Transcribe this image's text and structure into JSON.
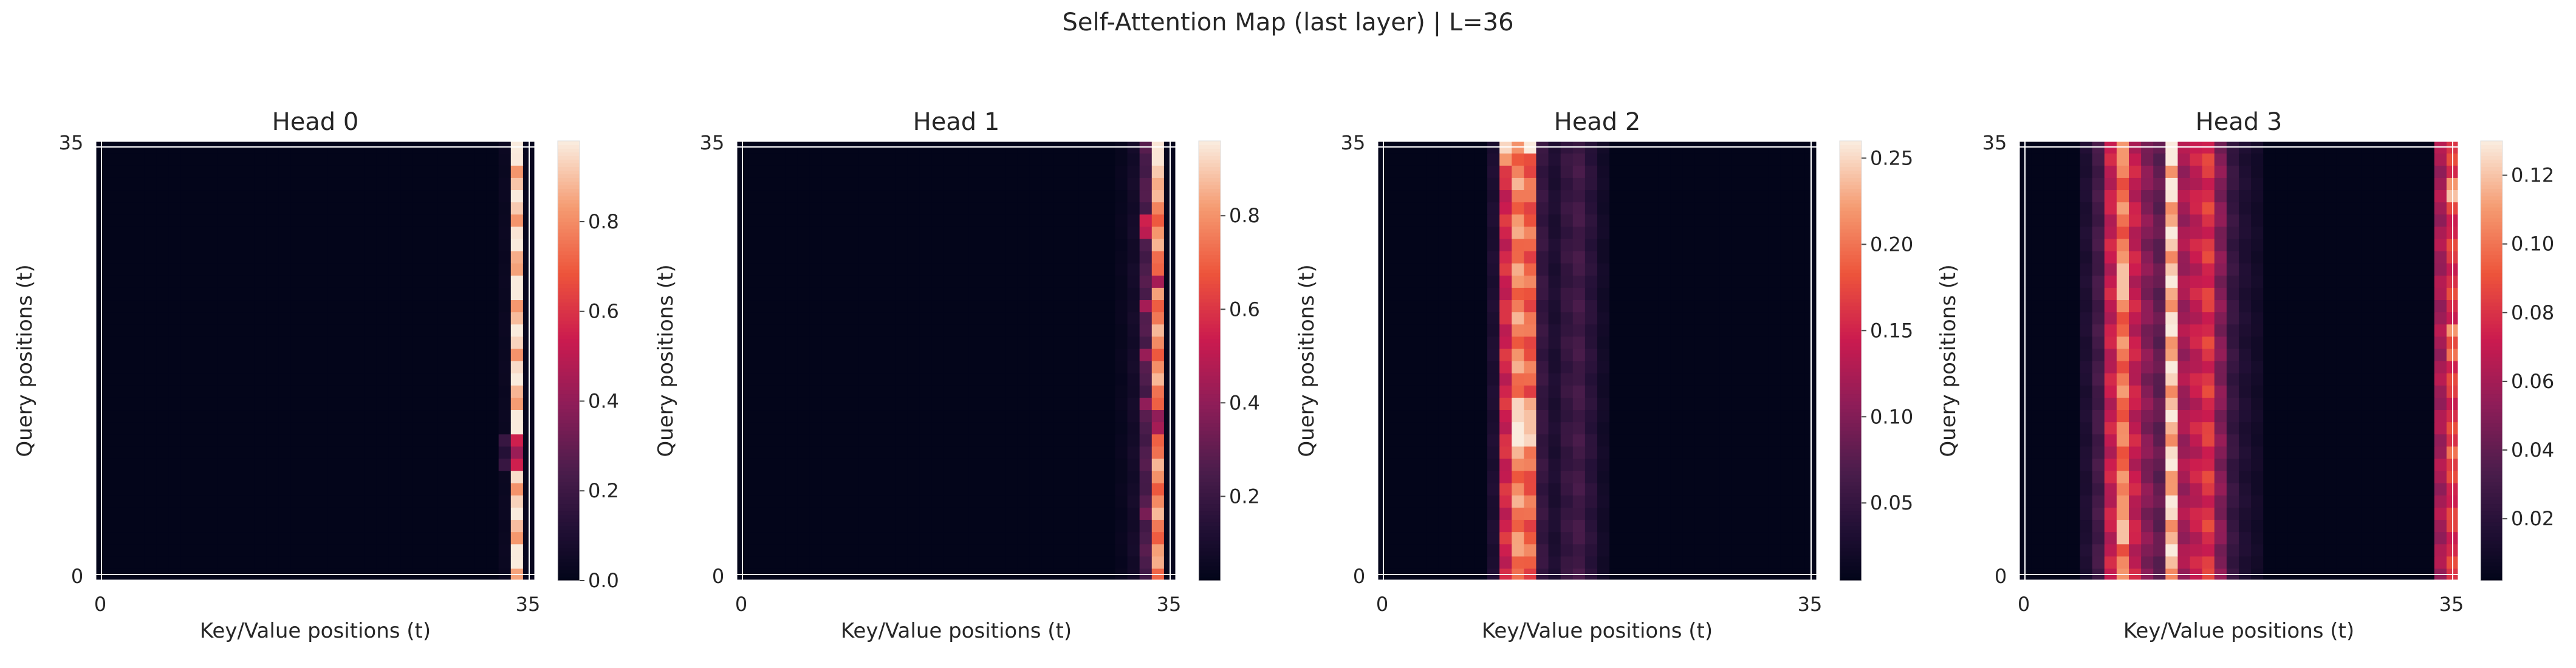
{
  "figure": {
    "title": "Self-Attention Map (last layer) | L=36"
  },
  "chart_data": [
    {
      "type": "heatmap",
      "title": "Head 0",
      "xlabel": "Key/Value positions (t)",
      "ylabel": "Query positions (t)",
      "seq_len": 36,
      "xticks": [
        0,
        35
      ],
      "yticks": [
        0,
        35
      ],
      "colorbar": {
        "min": 0.0,
        "max": 0.98,
        "ticks": [
          0.0,
          0.2,
          0.4,
          0.6,
          0.8
        ],
        "tick_labels": [
          "0.0",
          "0.2",
          "0.4",
          "0.6",
          "0.8"
        ]
      },
      "column_profile": [
        {
          "col": 34,
          "value": 0.93
        },
        {
          "col": 33,
          "value": 0.03
        },
        {
          "col": 35,
          "value": 0.02
        }
      ],
      "row_overrides": [
        {
          "col": 34,
          "rows": [
            9,
            10,
            11
          ],
          "values": [
            0.55,
            0.42,
            0.55
          ]
        },
        {
          "col": 33,
          "rows": [
            9,
            10,
            11
          ],
          "values": [
            0.18,
            0.12,
            0.18
          ]
        }
      ]
    },
    {
      "type": "heatmap",
      "title": "Head 1",
      "xlabel": "Key/Value positions (t)",
      "ylabel": "Query positions (t)",
      "seq_len": 36,
      "xticks": [
        0,
        35
      ],
      "yticks": [
        0,
        35
      ],
      "colorbar": {
        "min": 0.02,
        "max": 0.96,
        "ticks": [
          0.2,
          0.4,
          0.6,
          0.8
        ],
        "tick_labels": [
          "0.2",
          "0.4",
          "0.6",
          "0.8"
        ]
      },
      "column_profile": [
        {
          "col": 34,
          "value": 0.78
        },
        {
          "col": 33,
          "value": 0.25
        },
        {
          "col": 32,
          "value": 0.08
        },
        {
          "col": 31,
          "value": 0.04
        },
        {
          "col": 35,
          "value": 0.03
        }
      ],
      "row_overrides": [
        {
          "col": 34,
          "rows": [
            34,
            35,
            33,
            32,
            24,
            13,
            12
          ],
          "values": [
            0.95,
            0.95,
            0.9,
            0.85,
            0.45,
            0.4,
            0.45
          ]
        },
        {
          "col": 33,
          "rows": [
            29,
            28,
            22,
            18,
            14,
            5
          ],
          "values": [
            0.55,
            0.5,
            0.45,
            0.42,
            0.4,
            0.35
          ]
        }
      ]
    },
    {
      "type": "heatmap",
      "title": "Head 2",
      "xlabel": "Key/Value positions (t)",
      "ylabel": "Query positions (t)",
      "seq_len": 36,
      "xticks": [
        0,
        35
      ],
      "yticks": [
        0,
        35
      ],
      "colorbar": {
        "min": 0.005,
        "max": 0.26,
        "ticks": [
          0.05,
          0.1,
          0.15,
          0.2,
          0.25
        ],
        "tick_labels": [
          "0.05",
          "0.10",
          "0.15",
          "0.20",
          "0.25"
        ]
      },
      "column_profile": [
        {
          "col": 9,
          "value": 0.03
        },
        {
          "col": 10,
          "value": 0.15
        },
        {
          "col": 11,
          "value": 0.21
        },
        {
          "col": 12,
          "value": 0.19
        },
        {
          "col": 13,
          "value": 0.05
        },
        {
          "col": 14,
          "value": 0.03
        },
        {
          "col": 15,
          "value": 0.05
        },
        {
          "col": 16,
          "value": 0.06
        },
        {
          "col": 17,
          "value": 0.04
        },
        {
          "col": 18,
          "value": 0.02
        }
      ],
      "row_overrides": [
        {
          "col": 11,
          "rows": [
            11,
            12,
            13,
            14
          ],
          "values": [
            0.26,
            0.26,
            0.25,
            0.25
          ]
        },
        {
          "col": 12,
          "rows": [
            11,
            12,
            13,
            14,
            35
          ],
          "values": [
            0.25,
            0.24,
            0.24,
            0.23,
            0.26
          ]
        },
        {
          "col": 10,
          "rows": [
            35,
            34
          ],
          "values": [
            0.25,
            0.22
          ]
        }
      ]
    },
    {
      "type": "heatmap",
      "title": "Head 3",
      "xlabel": "Key/Value positions (t)",
      "ylabel": "Query positions (t)",
      "seq_len": 36,
      "xticks": [
        0,
        35
      ],
      "yticks": [
        0,
        35
      ],
      "colorbar": {
        "min": 0.002,
        "max": 0.13,
        "ticks": [
          0.02,
          0.04,
          0.06,
          0.08,
          0.1,
          0.12
        ],
        "tick_labels": [
          "0.02",
          "0.04",
          "0.06",
          "0.08",
          "0.10",
          "0.12"
        ]
      },
      "column_profile": [
        {
          "col": 5,
          "value": 0.015
        },
        {
          "col": 6,
          "value": 0.03
        },
        {
          "col": 7,
          "value": 0.07
        },
        {
          "col": 8,
          "value": 0.1
        },
        {
          "col": 9,
          "value": 0.07
        },
        {
          "col": 10,
          "value": 0.05
        },
        {
          "col": 11,
          "value": 0.04
        },
        {
          "col": 12,
          "value": 0.12
        },
        {
          "col": 13,
          "value": 0.06
        },
        {
          "col": 14,
          "value": 0.07
        },
        {
          "col": 15,
          "value": 0.08
        },
        {
          "col": 16,
          "value": 0.05
        },
        {
          "col": 17,
          "value": 0.025
        },
        {
          "col": 18,
          "value": 0.015
        },
        {
          "col": 19,
          "value": 0.01
        },
        {
          "col": 34,
          "value": 0.06
        },
        {
          "col": 35,
          "value": 0.08
        }
      ],
      "row_overrides": [
        {
          "col": 8,
          "rows": [
            3,
            4,
            5,
            6,
            23,
            24,
            25,
            26,
            34,
            35
          ],
          "values": [
            0.12,
            0.12,
            0.11,
            0.11,
            0.12,
            0.12,
            0.12,
            0.11,
            0.11,
            0.11
          ]
        },
        {
          "col": 12,
          "rows": [
            35,
            34
          ],
          "values": [
            0.13,
            0.13
          ]
        },
        {
          "col": 35,
          "rows": [
            31,
            32,
            20,
            18,
            10
          ],
          "values": [
            0.12,
            0.11,
            0.11,
            0.1,
            0.1
          ]
        }
      ]
    }
  ]
}
